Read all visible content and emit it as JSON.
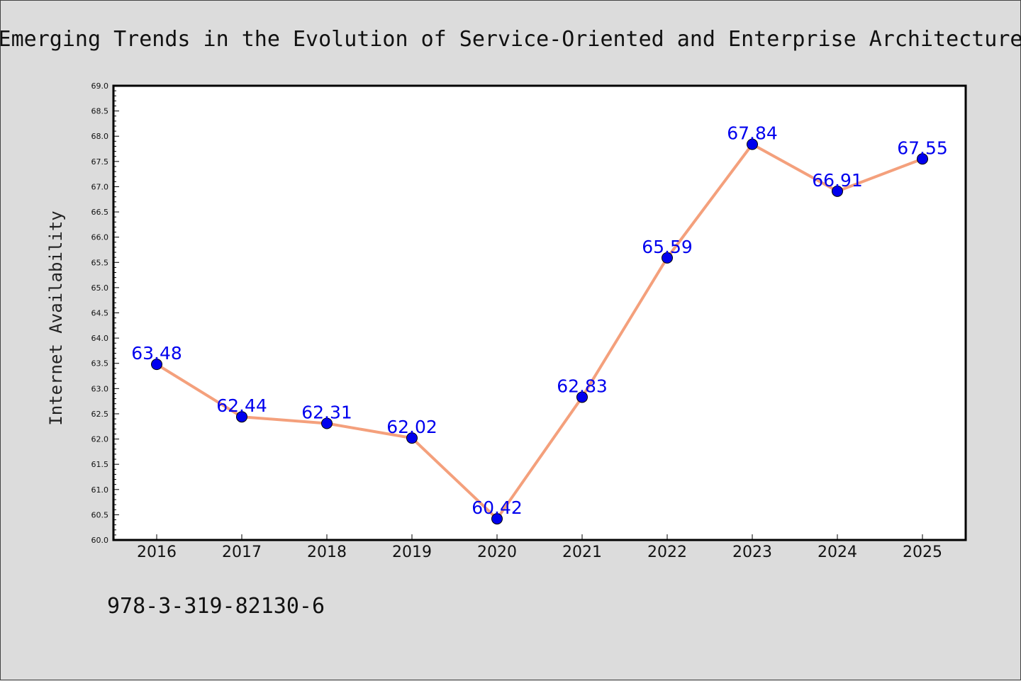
{
  "chart_data": {
    "type": "line",
    "title": "Emerging Trends in the Evolution of Service-Oriented and Enterprise Architecture",
    "ylabel": "Internet Availability",
    "xlabel": "",
    "categories": [
      "2016",
      "2017",
      "2018",
      "2019",
      "2020",
      "2021",
      "2022",
      "2023",
      "2024",
      "2025"
    ],
    "values": [
      63.48,
      62.44,
      62.31,
      62.02,
      60.42,
      62.83,
      65.59,
      67.84,
      66.91,
      67.55
    ],
    "data_labels": [
      "63.48",
      "62.44",
      "62.31",
      "62.02",
      "60.42",
      "62.83",
      "65.59",
      "67.84",
      "66.91",
      "67.55"
    ],
    "ylim": [
      60.0,
      69.0
    ],
    "yticks": [
      "60.0",
      "60.5",
      "61.0",
      "61.5",
      "62.0",
      "62.5",
      "63.0",
      "63.5",
      "64.0",
      "64.5",
      "65.0",
      "65.5",
      "66.0",
      "66.5",
      "67.0",
      "67.5",
      "68.0",
      "68.5",
      "69.0"
    ],
    "grid": false,
    "line_color": "#f4a07c",
    "marker_color": "#0000ee",
    "label_color": "#0000ee"
  },
  "footer_text": "978-3-319-82130-6"
}
